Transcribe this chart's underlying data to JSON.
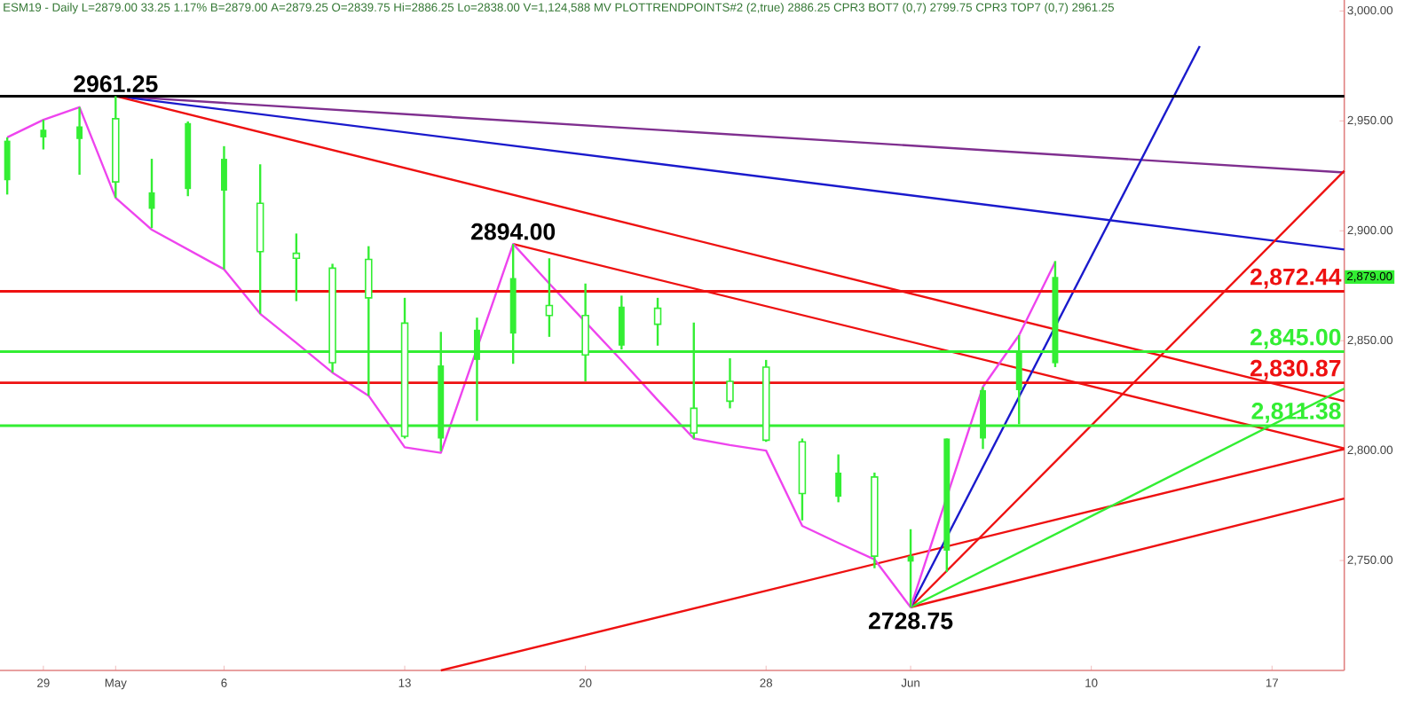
{
  "chart_data": {
    "type": "candlestick",
    "title": "ESM19 - Daily L=2879.00 33.25 1.17% B=2879.00 A=2879.25 O=2839.75 Hi=2886.25 Lo=2838.00 V=1,124,588 MV PLOTTRENDPOINTS#2 (2,true) 2886.25 CPR3 BOT7 (0,7) 2799.75 CPR3 TOP7 (0,7) 2961.25",
    "categories": [
      null,
      "29",
      null,
      "May",
      null,
      null,
      "6",
      null,
      null,
      null,
      null,
      "13",
      null,
      null,
      null,
      null,
      "20",
      null,
      null,
      null,
      null,
      "28",
      null,
      null,
      null,
      "Jun",
      null,
      null,
      null,
      null,
      "10",
      null,
      null,
      null,
      null,
      "17",
      null,
      null
    ],
    "color": "#33ee33",
    "ohlc": [
      [
        2923,
        2942.5,
        2916.5,
        2941
      ],
      [
        2942.5,
        2950.5,
        2937,
        2946
      ],
      [
        2941.75,
        2956.25,
        2925.5,
        2947.5
      ],
      [
        2951,
        2961.25,
        2915,
        2922.25
      ],
      [
        2910,
        2932.75,
        2901.25,
        2917.5
      ],
      [
        2919,
        2949.75,
        2915.75,
        2949
      ],
      [
        2918.25,
        2938.5,
        2882.5,
        2932.75
      ],
      [
        2912.5,
        2930.25,
        2862.25,
        2890.5
      ],
      [
        2889.75,
        2898.75,
        2868,
        2887.5
      ],
      [
        2883,
        2885,
        2835.5,
        2840
      ],
      [
        2887,
        2893,
        2825,
        2869.5
      ],
      [
        2858,
        2869.5,
        2805.5,
        2806.5
      ],
      [
        2805.5,
        2854,
        2799.75,
        2838.75
      ],
      [
        2841.25,
        2860.5,
        2813.5,
        2855
      ],
      [
        2853.25,
        2894,
        2839.5,
        2878.5
      ],
      [
        2866,
        2887.5,
        2851.75,
        2861.5
      ],
      [
        2861.5,
        2876,
        2831.5,
        2843.5
      ],
      [
        2847.75,
        2870.5,
        2846,
        2865.5
      ],
      [
        2864.75,
        2869.5,
        2847.75,
        2857.5
      ],
      [
        2819.25,
        2858.25,
        2805.5,
        2808
      ],
      [
        2831.5,
        2842,
        2819.25,
        2822.5
      ],
      [
        2838,
        2841.25,
        2804,
        2804.75
      ],
      [
        2804,
        2805.5,
        2768.25,
        2780.5
      ],
      [
        2779,
        2798.25,
        2776.5,
        2790
      ],
      [
        2788,
        2790,
        2746.5,
        2752
      ],
      [
        2749.5,
        2764.25,
        2728.75,
        2752
      ],
      [
        2754.5,
        2805.5,
        2744.75,
        2805.5
      ],
      [
        2805.5,
        2829,
        2800.75,
        2827.5
      ],
      [
        2827.5,
        2852.5,
        2812,
        2845
      ],
      [
        2839.75,
        2886.25,
        2838,
        2879
      ],
      null,
      null,
      null,
      null,
      null,
      null,
      null,
      null
    ],
    "series": [
      {
        "type": "line",
        "color": "#7f2f8f",
        "values": [
          null,
          null,
          null,
          2961.25,
          null,
          null,
          null,
          null,
          null,
          null,
          null,
          null,
          null,
          null,
          null,
          null,
          null,
          null,
          null,
          null,
          null,
          null,
          null,
          null,
          null,
          null,
          null,
          null,
          null,
          null,
          null,
          null,
          null,
          null,
          null,
          null,
          null,
          2926.5
        ]
      },
      {
        "type": "line",
        "color": "#1a1acc",
        "values": [
          null,
          null,
          null,
          2961.25,
          null,
          null,
          null,
          null,
          null,
          null,
          null,
          null,
          null,
          null,
          null,
          null,
          null,
          null,
          null,
          null,
          null,
          null,
          null,
          null,
          null,
          null,
          null,
          null,
          null,
          null,
          null,
          null,
          null,
          null,
          null,
          null,
          null,
          2891.5
        ]
      },
      {
        "type": "line",
        "color": "#ee1111",
        "values": [
          null,
          null,
          null,
          2961.25,
          null,
          null,
          null,
          null,
          null,
          null,
          null,
          null,
          null,
          null,
          null,
          null,
          null,
          null,
          null,
          null,
          null,
          null,
          null,
          null,
          null,
          null,
          null,
          null,
          null,
          null,
          null,
          null,
          null,
          null,
          null,
          null,
          null,
          2822.5
        ]
      },
      {
        "type": "line",
        "color": "#ee1111",
        "values": [
          null,
          null,
          null,
          null,
          null,
          null,
          null,
          null,
          null,
          null,
          null,
          null,
          null,
          null,
          2894,
          null,
          null,
          null,
          null,
          null,
          null,
          null,
          null,
          null,
          null,
          null,
          null,
          null,
          null,
          null,
          null,
          null,
          null,
          null,
          null,
          null,
          null,
          2801
        ]
      },
      {
        "type": "line",
        "color": "#ee1111",
        "values": [
          null,
          null,
          null,
          null,
          null,
          null,
          null,
          null,
          null,
          null,
          null,
          null,
          2700,
          null,
          null,
          null,
          null,
          null,
          null,
          null,
          null,
          null,
          null,
          null,
          null,
          null,
          null,
          null,
          null,
          null,
          null,
          null,
          null,
          null,
          null,
          null,
          null,
          2800.75
        ]
      },
      {
        "type": "line",
        "color": "#ee1111",
        "values": [
          null,
          null,
          null,
          null,
          null,
          null,
          null,
          null,
          null,
          null,
          null,
          null,
          null,
          null,
          null,
          null,
          null,
          null,
          null,
          null,
          null,
          null,
          null,
          null,
          null,
          2728.75,
          null,
          null,
          null,
          null,
          null,
          null,
          null,
          null,
          null,
          null,
          null,
          2778.25
        ]
      },
      {
        "type": "line",
        "color": "#ee1111",
        "values": [
          null,
          null,
          null,
          null,
          null,
          null,
          null,
          null,
          null,
          null,
          null,
          null,
          null,
          null,
          null,
          null,
          null,
          null,
          null,
          null,
          null,
          null,
          null,
          null,
          null,
          2728.75,
          null,
          null,
          null,
          null,
          null,
          null,
          null,
          null,
          null,
          null,
          null,
          2927.25
        ]
      },
      {
        "type": "line",
        "color": "#33ee33",
        "values": [
          null,
          null,
          null,
          null,
          null,
          null,
          null,
          null,
          null,
          null,
          null,
          null,
          null,
          null,
          null,
          null,
          null,
          null,
          null,
          null,
          null,
          null,
          null,
          null,
          null,
          2728.75,
          null,
          null,
          null,
          null,
          null,
          null,
          null,
          null,
          null,
          null,
          null,
          2828.25
        ]
      },
      {
        "type": "line",
        "color": "#1a1acc",
        "values": [
          null,
          null,
          null,
          null,
          null,
          null,
          null,
          null,
          null,
          null,
          null,
          null,
          null,
          null,
          null,
          null,
          null,
          null,
          null,
          null,
          null,
          null,
          null,
          null,
          null,
          2728.75,
          null,
          null,
          null,
          null,
          null,
          null,
          null,
          2984,
          null,
          null,
          null,
          null
        ]
      },
      {
        "type": "line",
        "color": "#ee44ee",
        "values": [
          2942.5,
          2950.5,
          2956.25,
          2915,
          2900.5,
          2891.5,
          2882.5,
          2862.25,
          2849,
          2835.5,
          2825,
          2801.5,
          2799,
          null,
          2894,
          2876,
          2858.5,
          2841,
          2823,
          2805.5,
          2802.5,
          2800,
          2765.75,
          2758,
          2750.5,
          2728.75,
          null,
          2829,
          2852.5,
          2885.75,
          null,
          null,
          null,
          null,
          null,
          null,
          null,
          null
        ]
      }
    ],
    "ref_lines": [
      {
        "axis": "y",
        "value": 2961.25,
        "color": "#000000"
      },
      {
        "axis": "y",
        "value": 2872.44,
        "label": "2,872.44",
        "color": "#ee1111"
      },
      {
        "axis": "y",
        "value": 2845,
        "label": "2,845.00",
        "color": "#33ee33"
      },
      {
        "axis": "y",
        "value": 2830.87,
        "label": "2,830.87",
        "color": "#ee1111"
      },
      {
        "axis": "y",
        "value": 2811.38,
        "label": "2,811.38",
        "color": "#33ee33"
      }
    ],
    "annotations": [
      {
        "text": "2961.25",
        "x": "May",
        "y": 2961.25
      },
      {
        "text": "2894.00",
        "y": 2894
      },
      {
        "text": "2728.75",
        "y": 2728.75
      },
      "2,879.00"
    ],
    "ylim": [
      2700,
      3005
    ],
    "yticks": [
      {
        "value": 2750,
        "label": "2,750.00"
      },
      {
        "value": 2800,
        "label": "2,800.00"
      },
      {
        "value": 2850,
        "label": "2,850.00"
      },
      {
        "value": 2900,
        "label": "2,900.00"
      },
      {
        "value": 2950,
        "label": "2,950.00"
      },
      {
        "value": 3000,
        "label": "3,000.00"
      }
    ],
    "grid": false
  }
}
